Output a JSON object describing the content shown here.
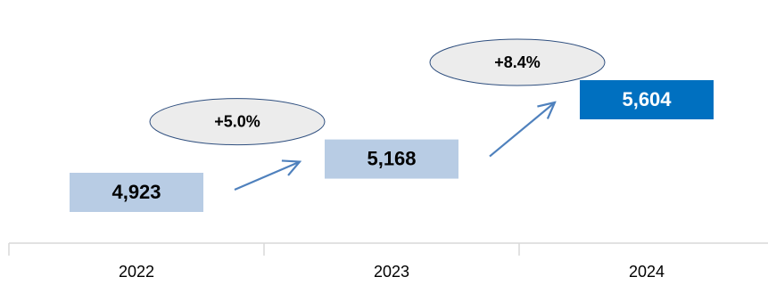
{
  "chart_data": {
    "type": "bar",
    "categories": [
      "2022",
      "2023",
      "2024"
    ],
    "values": [
      4923,
      5168,
      5604
    ],
    "value_labels": [
      "4,923",
      "5,168",
      "5,604"
    ],
    "changes": [
      "+5.0%",
      "+8.4%"
    ],
    "highlight_index": 2,
    "grid": false,
    "colors": {
      "box": "#b8cce4",
      "highlight": "#0070c0",
      "label_text": "#000000",
      "highlight_text": "#ffffff",
      "arrow": "#4f81bd",
      "bubble_fill": "#ececec",
      "bubble_stroke": "#2f4f7f",
      "axis": "#d9d9d9"
    }
  }
}
